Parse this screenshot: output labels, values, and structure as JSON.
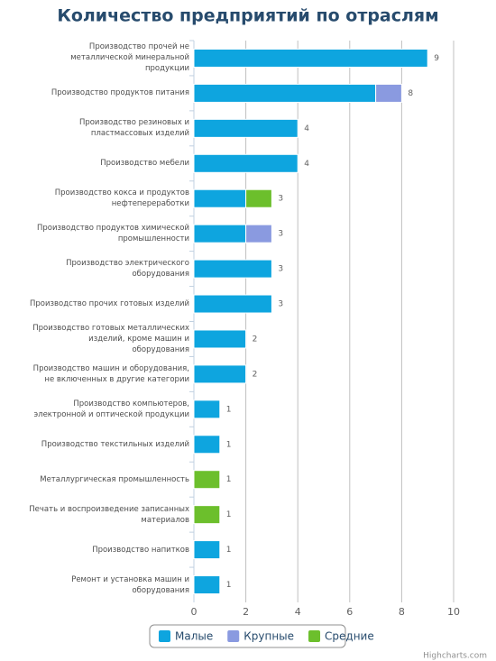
{
  "chart_data": {
    "type": "stacked-bar-horizontal",
    "title": "Количество предприятий по отраслям",
    "categories": [
      "Производство прочей не металлической минеральной продукции",
      "Производство продуктов питания",
      "Производство резиновых и пластмассовых изделий",
      "Производство мебели",
      "Производство кокса и продуктов нефтепереработки",
      "Производство продуктов химической промышленности",
      "Производство электрического оборудования",
      "Производство прочих готовых изделий",
      "Производство готовых металлических изделий, кроме машин и оборудования",
      "Производство машин и оборудования, не включенных в другие категории",
      "Производство компьютеров, электронной и оптической продукции",
      "Производство текстильных изделий",
      "Металлургическая промышленность",
      "Печать и воспроизведение записанных материалов",
      "Производство напитков",
      "Ремонт и установка машин и оборудования"
    ],
    "series": [
      {
        "name": "Малые",
        "color": "#0ea5df",
        "values": [
          9,
          7,
          4,
          4,
          2,
          2,
          3,
          3,
          2,
          2,
          1,
          1,
          0,
          0,
          1,
          1
        ]
      },
      {
        "name": "Крупные",
        "color": "#8a9ae0",
        "values": [
          0,
          1,
          0,
          0,
          0,
          1,
          0,
          0,
          0,
          0,
          0,
          0,
          0,
          0,
          0,
          0
        ]
      },
      {
        "name": "Средние",
        "color": "#6cbf2c",
        "values": [
          0,
          0,
          0,
          0,
          1,
          0,
          0,
          0,
          0,
          0,
          0,
          0,
          1,
          1,
          0,
          0
        ]
      }
    ],
    "totals": [
      9,
      8,
      4,
      4,
      3,
      3,
      3,
      3,
      2,
      2,
      1,
      1,
      1,
      1,
      1,
      1
    ],
    "xlim": [
      0,
      10
    ],
    "xticks": [
      0,
      2,
      4,
      6,
      8,
      10
    ],
    "grid": true,
    "legend": "bottom",
    "credits": "Highcharts.com"
  }
}
